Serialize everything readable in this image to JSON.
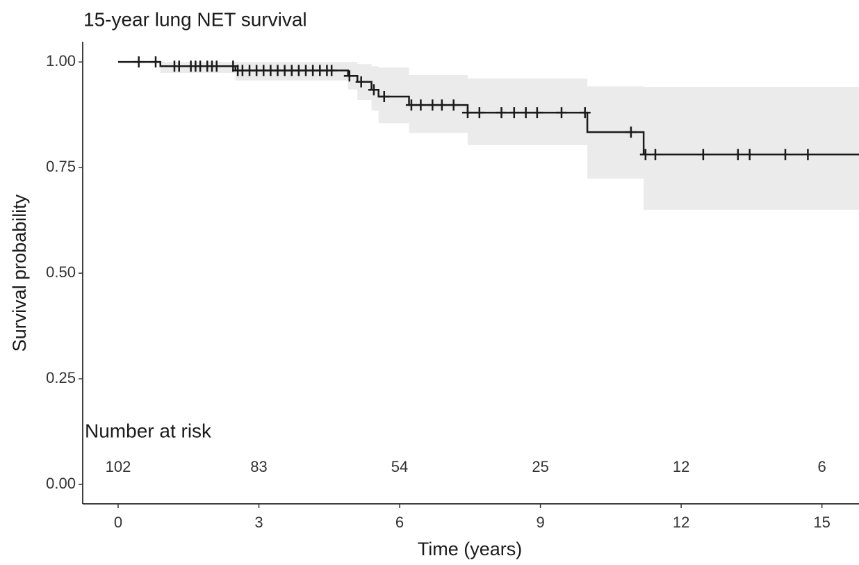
{
  "chart_data": {
    "type": "step",
    "title": "15-year lung NET survival",
    "xlabel": "Time (years)",
    "ylabel": "Survival probability",
    "x": [
      0,
      0.9,
      2.5,
      4.9,
      5.1,
      5.4,
      5.55,
      6.2,
      7.45,
      10.0,
      11.2
    ],
    "values": [
      1,
      0.99,
      0.98,
      0.967,
      0.953,
      0.934,
      0.918,
      0.898,
      0.88,
      0.834,
      0.781
    ],
    "ci_lower": [
      1,
      0.974,
      0.956,
      0.935,
      0.91,
      0.885,
      0.855,
      0.832,
      0.803,
      0.724,
      0.65
    ],
    "ci_upper": [
      1,
      1,
      1,
      1,
      0.995,
      0.99,
      0.987,
      0.969,
      0.961,
      0.942,
      0.941
    ],
    "censor_x": [
      0.44,
      0.8,
      1.2,
      1.3,
      1.55,
      1.65,
      1.75,
      1.9,
      2.0,
      2.1,
      2.45,
      2.55,
      2.65,
      2.8,
      2.95,
      3.1,
      3.25,
      3.4,
      3.55,
      3.7,
      3.85,
      4.0,
      4.15,
      4.3,
      4.45,
      4.55,
      4.93,
      5.18,
      5.45,
      5.67,
      6.25,
      6.45,
      6.7,
      6.9,
      7.15,
      7.45,
      7.7,
      8.17,
      8.44,
      8.69,
      8.93,
      9.45,
      9.95,
      10.93,
      11.24,
      11.45,
      12.47,
      13.21,
      13.46,
      14.22,
      14.7
    ],
    "censor_values": [
      1,
      1,
      0.99,
      0.99,
      0.99,
      0.99,
      0.99,
      0.99,
      0.99,
      0.99,
      0.99,
      0.98,
      0.98,
      0.98,
      0.98,
      0.98,
      0.98,
      0.98,
      0.98,
      0.98,
      0.98,
      0.98,
      0.98,
      0.98,
      0.98,
      0.98,
      0.967,
      0.953,
      0.934,
      0.918,
      0.898,
      0.898,
      0.898,
      0.898,
      0.898,
      0.88,
      0.88,
      0.88,
      0.88,
      0.88,
      0.88,
      0.88,
      0.88,
      0.834,
      0.781,
      0.781,
      0.781,
      0.781,
      0.781,
      0.781,
      0.781
    ],
    "color": "#1a1a1a",
    "band_color": "#ebebeb",
    "risk_table": {
      "title": "Number at risk",
      "x": [
        0,
        3,
        6,
        9,
        12,
        15
      ],
      "values": [
        102,
        83,
        54,
        25,
        12,
        6
      ]
    },
    "xlim": [
      -0.755,
      15.79
    ],
    "ylim": [
      -0.046,
      1.048
    ],
    "xticks": [
      0,
      3,
      6,
      9,
      12,
      15
    ],
    "yticks": [
      {
        "value": 0,
        "label": "0.00"
      },
      {
        "value": 0.25,
        "label": "0.25"
      },
      {
        "value": 0.5,
        "label": "0.50"
      },
      {
        "value": 0.75,
        "label": "0.75"
      },
      {
        "value": 1,
        "label": "1.00"
      }
    ]
  }
}
